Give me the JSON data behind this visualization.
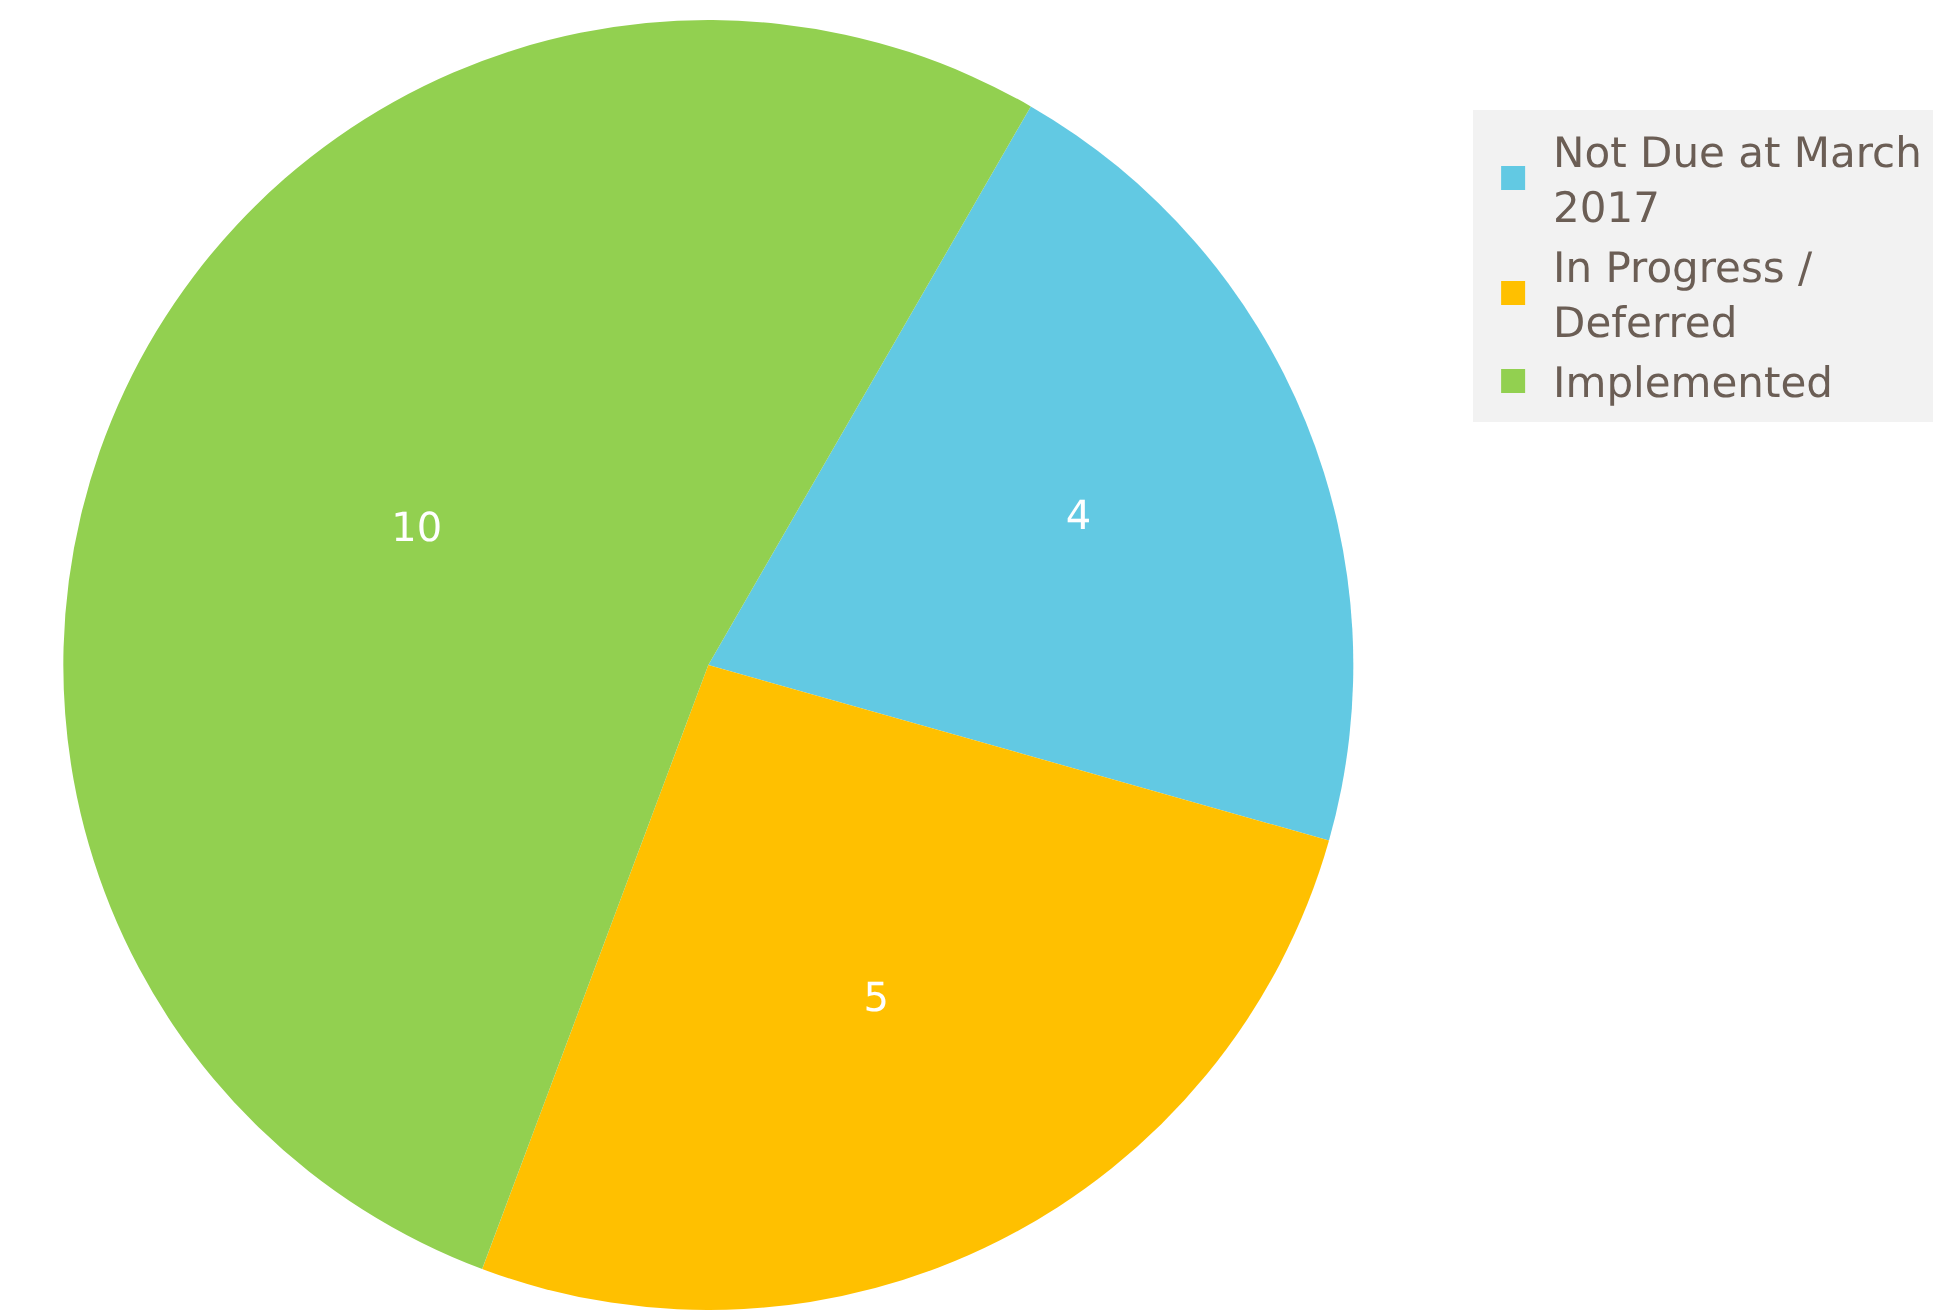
{
  "chart_data": {
    "type": "pie",
    "categories": [
      "Not Due at March 2017",
      "In Progress / Deferred",
      "Implemented"
    ],
    "values": [
      4,
      5,
      10
    ],
    "colors": [
      "#62c9e3",
      "#ffc000",
      "#92d050"
    ],
    "data_labels": true,
    "legend": "top right"
  }
}
